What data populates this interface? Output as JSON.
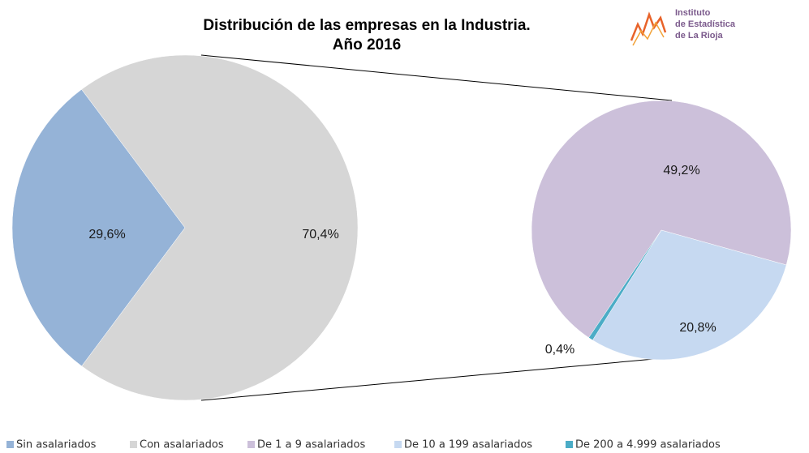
{
  "chart_data": [
    {
      "type": "pie",
      "title": "Distribución de las empresas en la Industria.",
      "subtitle": "Año 2016",
      "categories": [
        "Sin asalariados",
        "Con asalariados"
      ],
      "values": [
        29.6,
        70.4
      ],
      "value_labels": [
        "29,6%",
        "70,4%"
      ],
      "colors": [
        "#95b3d7",
        "#d6d6d6"
      ]
    },
    {
      "type": "pie",
      "categories": [
        "De 1 a 9 asalariados",
        "De 10 a 199 asalariados",
        "De 200 a 4.999 asalariados"
      ],
      "values": [
        49.2,
        20.8,
        0.4
      ],
      "value_labels": [
        "49,2%",
        "20,8%",
        "0,4%"
      ],
      "colors": [
        "#ccc0da",
        "#c6d9f1",
        "#4bacc6"
      ]
    }
  ],
  "logo": [
    "Instituto",
    "de Estadística",
    "de La Rioja"
  ]
}
